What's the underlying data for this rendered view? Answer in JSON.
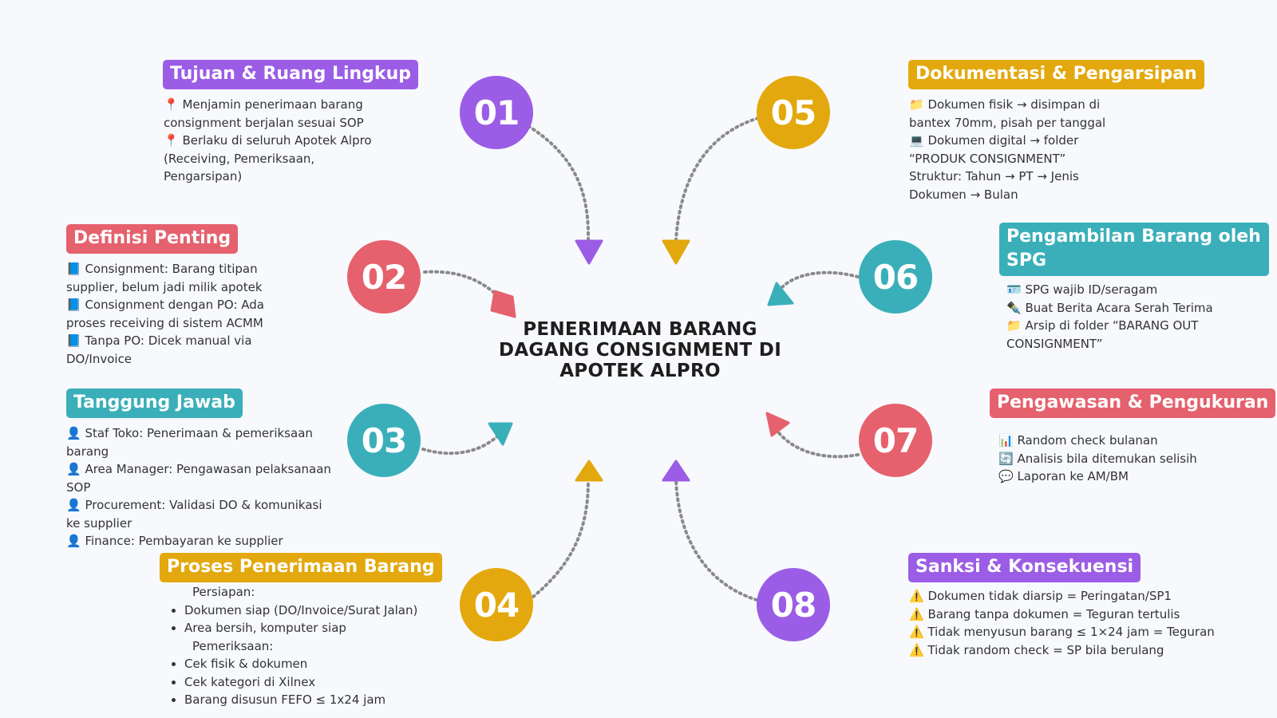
{
  "title": "PENERIMAAN BARANG DAGANG CONSIGNMENT DI APOTEK ALPRO",
  "colors": {
    "purple": "#9b5de5",
    "red": "#e5616d",
    "teal": "#3aafb9",
    "gold": "#e3a80d",
    "arrow": "#8a8a8a"
  },
  "steps": [
    {
      "number": "01",
      "label": "Tujuan & Ruang Lingkup",
      "lines": [
        "📍 Menjamin penerimaan barang",
        "consignment berjalan sesuai SOP",
        "📍 Berlaku di seluruh Apotek Alpro",
        "(Receiving, Pemeriksaan,",
        "Pengarsipan)"
      ]
    },
    {
      "number": "02",
      "label": "Definisi Penting",
      "lines": [
        "📘 Consignment: Barang titipan",
        "supplier, belum jadi milik apotek",
        "📘 Consignment dengan PO: Ada",
        "proses receiving di sistem ACMM",
        "📘 Tanpa PO: Dicek manual via",
        "DO/Invoice"
      ]
    },
    {
      "number": "03",
      "label": "Tanggung Jawab",
      "lines": [
        "👤 Staf Toko: Penerimaan & pemeriksaan",
        "barang",
        "👤 Area Manager: Pengawasan pelaksanaan",
        "SOP",
        "👤 Procurement: Validasi DO & komunikasi",
        "ke supplier",
        "👤 Finance: Pembayaran ke supplier"
      ]
    },
    {
      "number": "04",
      "label": "Proses Penerimaan Barang",
      "sub1": "Persiapan:",
      "items1": [
        "Dokumen siap (DO/Invoice/Surat Jalan)",
        "Area bersih, komputer siap"
      ],
      "sub2": "Pemeriksaan:",
      "items2": [
        "Cek fisik & dokumen",
        "Cek kategori di Xilnex",
        "Barang disusun FEFO ≤ 1x24 jam"
      ]
    },
    {
      "number": "05",
      "label": "Dokumentasi & Pengarsipan",
      "lines": [
        "📁 Dokumen fisik → disimpan di",
        "bantex 70mm, pisah per tanggal",
        "💻 Dokumen digital → folder",
        "“PRODUK CONSIGNMENT”",
        "Struktur: Tahun → PT → Jenis",
        "Dokumen → Bulan"
      ]
    },
    {
      "number": "06",
      "label": "Pengambilan Barang oleh SPG",
      "lines": [
        "🪪 SPG wajib ID/seragam",
        "✒️ Buat Berita Acara Serah Terima",
        "📁 Arsip di folder “BARANG OUT",
        "CONSIGNMENT”"
      ]
    },
    {
      "number": "07",
      "label": "Pengawasan & Pengukuran",
      "lines": [
        "📊 Random check bulanan",
        "🔄 Analisis bila ditemukan selisih",
        "💬 Laporan ke AM/BM"
      ]
    },
    {
      "number": "08",
      "label": "Sanksi & Konsekuensi",
      "lines": [
        "⚠️ Dokumen tidak diarsip = Peringatan/SP1",
        "⚠️ Barang tanpa dokumen = Teguran tertulis",
        "⚠️ Tidak menyusun barang ≤ 1×24 jam = Teguran",
        "⚠️ Tidak random check = SP bila berulang"
      ]
    }
  ]
}
